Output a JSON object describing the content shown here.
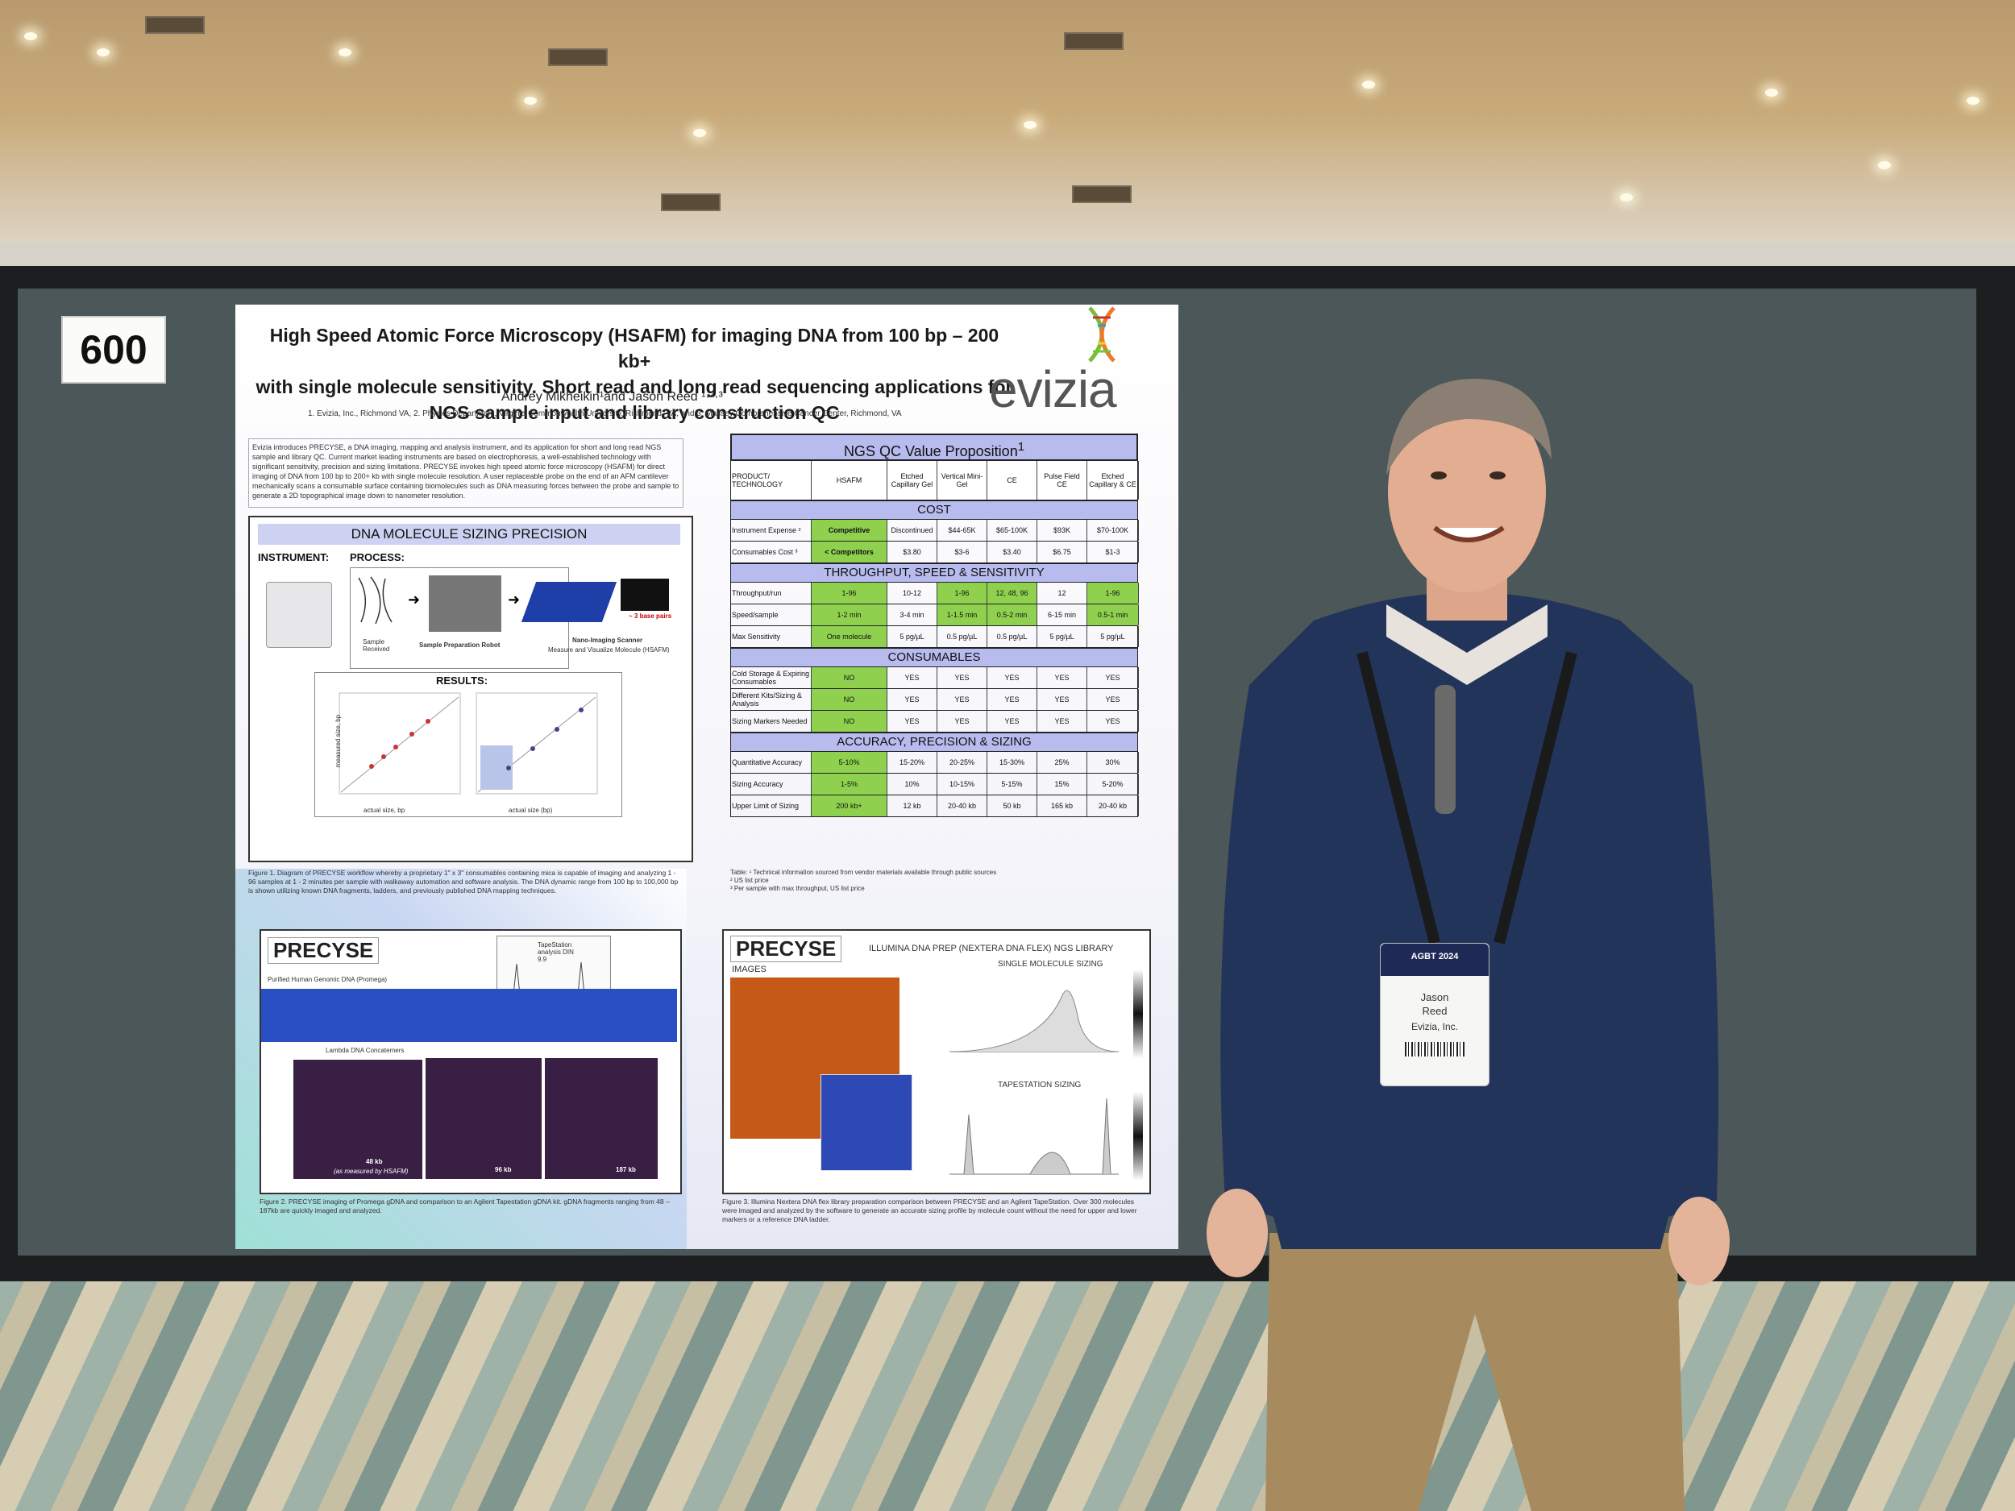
{
  "booth_number": "600",
  "poster": {
    "title_lines": [
      "High Speed Atomic Force Microscopy (HSAFM) for imaging DNA from 100 bp – 200 kb+",
      "with single molecule sensitivity. Short read and long read sequencing applications for",
      "NGS sample input and library construction QC"
    ],
    "authors": "Andrey Mikheikin¹and Jason Reed ¹·²·³",
    "affiliations": "1. Evizia, Inc., Richmond VA, 2. Physics Department, Virginia Commonwealth University, Richmond, VA, and 3. Massey Comprehensive Cancer Center, Richmond,  VA",
    "logo": "evizia",
    "intro": "Evizia introduces PRECYSE, a DNA imaging, mapping and analysis instrument, and its application for short and long read NGS sample and library QC. Current market leading instruments are based on electrophoresis, a well-established technology with significant sensitivity, precision and sizing limitations. PRECYSE invokes high speed atomic force microscopy (HSAFM) for direct imaging of DNA from 100 bp to 200+ kb with single molecule resolution. A user replaceable probe on the end of an AFM cantilever mechanically scans a consumable surface containing biomolecules such as DNA measuring forces between the probe and sample to generate a 2D topographical image down to nanometer resolution.",
    "sizing_panel": {
      "title": "DNA MOLECULE SIZING PRECISION",
      "instrument_label": "INSTRUMENT:",
      "process_label": "PROCESS:",
      "sample_received": "Sample Received",
      "sample_prep": "Sample Preparation Robot",
      "nano_imaging": "Nano-Imaging Scanner",
      "measure": "Measure and Visualize Molecule (HSAFM)",
      "base_pairs": "~ 3 base pairs",
      "results_label": "RESULTS:",
      "x_axis_left": "actual size, bp",
      "x_axis_right": "actual size (bp)",
      "y_axis": "measured size, bp"
    },
    "fig1_caption": "Figure 1. Diagram of PRECYSE workflow whereby a proprietary 1\" x 3\" consumables containing mica is capable of imaging and analyzing 1 - 96 samples at 1 - 2 minutes per sample with walkaway automation and software analysis. The DNA dynamic range from 100 bp to 100,000 bp is shown utilizing known DNA fragments, ladders, and previously published DNA mapping techniques.",
    "table": {
      "title": "NGS QC Value Proposition",
      "title_sup": "1",
      "columns": [
        "PRODUCT/ TECHNOLOGY",
        "HSAFM",
        "Etched Capillary Gel",
        "Vertical Mini-Gel",
        "CE",
        "Pulse Field CE",
        "Etched Capillary & CE"
      ],
      "sections": [
        {
          "name": "COST",
          "rows": [
            {
              "label": "Instrument Expense ²",
              "cells": [
                "Competitive",
                "Discontinued",
                "$44-65K",
                "$65-100K",
                "$93K",
                "$70-100K"
              ]
            },
            {
              "label": "Consumables Cost ³",
              "cells": [
                "< Competitors",
                "$3.80",
                "$3-6",
                "$3.40",
                "$6.75",
                "$1-3"
              ]
            }
          ]
        },
        {
          "name": "THROUGHPUT, SPEED & SENSITIVITY",
          "rows": [
            {
              "label": "Throughput/run",
              "cells": [
                "1-96",
                "10-12",
                "1-96",
                "12, 48, 96",
                "12",
                "1-96"
              ],
              "green": [
                0,
                2,
                3,
                5
              ]
            },
            {
              "label": "Speed/sample",
              "cells": [
                "1-2 min",
                "3-4 min",
                "1-1.5 min",
                "0.5-2 min",
                "6-15 min",
                "0.5-1 min"
              ],
              "green": [
                0,
                2,
                3,
                5
              ]
            },
            {
              "label": "Max Sensitivity",
              "cells": [
                "One molecule",
                "5 pg/µL",
                "0.5 pg/µL",
                "0.5 pg/µL",
                "5 pg/µL",
                "5 pg/µL"
              ],
              "green": [
                0
              ]
            }
          ]
        },
        {
          "name": "CONSUMABLES",
          "rows": [
            {
              "label": "Cold Storage & Expiring Consumables",
              "cells": [
                "NO",
                "YES",
                "YES",
                "YES",
                "YES",
                "YES"
              ],
              "green": [
                0
              ]
            },
            {
              "label": "Different Kits/Sizing & Analysis",
              "cells": [
                "NO",
                "YES",
                "YES",
                "YES",
                "YES",
                "YES"
              ],
              "green": [
                0
              ]
            },
            {
              "label": "Sizing Markers Needed",
              "cells": [
                "NO",
                "YES",
                "YES",
                "YES",
                "YES",
                "YES"
              ],
              "green": [
                0
              ]
            }
          ]
        },
        {
          "name": "ACCURACY, PRECISION & SIZING",
          "rows": [
            {
              "label": "Quantitative Accuracy",
              "cells": [
                "5-10%",
                "15-20%",
                "20-25%",
                "15-30%",
                "25%",
                "30%"
              ],
              "green": [
                0
              ]
            },
            {
              "label": "Sizing Accuracy",
              "cells": [
                "1-5%",
                "10%",
                "10-15%",
                "5-15%",
                "15%",
                "5-20%"
              ],
              "green": [
                0
              ]
            },
            {
              "label": "Upper Limit of Sizing",
              "cells": [
                "200 kb+",
                "12 kb",
                "20-40 kb",
                "50 kb",
                "165 kb",
                "20-40 kb"
              ],
              "green": [
                0
              ]
            }
          ]
        }
      ],
      "notes": [
        "Table: ¹ Technical information sourced from vendor materials available through public sources",
        "² US list price",
        "³ Per sample with max throughput, US list price"
      ]
    },
    "left_bottom": {
      "brand": "PRECYSE",
      "tapestation": "TapeStation analysis DIN 9.9",
      "genomic": "Purified Human Genomic DNA (Promega)",
      "concatemers": "Lambda DNA Concatemers",
      "sizes": [
        "48 kb",
        "96 kb",
        "187 kb"
      ],
      "measured_note": "(as measured by HSAFM)"
    },
    "fig2_caption": "Figure 2. PRECYSE imaging of Promega gDNA and comparison to an Agilent Tapestation gDNA kit. gDNA fragments ranging from 48 – 187kb are quickly imaged and analyzed.",
    "right_bottom": {
      "brand": "PRECYSE",
      "library_title": "ILLUMINA DNA PREP (NEXTERA DNA FLEX) NGS LIBRARY",
      "images_label": "IMAGES",
      "single_molecule": "SINGLE MOLECULE SIZING",
      "tapestation_sizing": "TAPESTATION SIZING"
    },
    "fig3_caption": "Figure 3. Illumina Nextera DNA flex library preparation comparison between PRECYSE and an Agilent TapeStation. Over 300 molecules were imaged and analyzed by the software to generate an accurate sizing profile by molecule count without the need for upper and lower markers or a reference DNA ladder."
  },
  "badge": {
    "logo": "AGBT 2024",
    "first_name": "Jason",
    "last_name": "Reed",
    "org": "Evizia, Inc."
  },
  "colors": {
    "board": "#4b5758",
    "table_header": "#b7bbee",
    "table_green": "#8fd14f",
    "sweater": "#23345a",
    "pants": "#a88a5f"
  }
}
